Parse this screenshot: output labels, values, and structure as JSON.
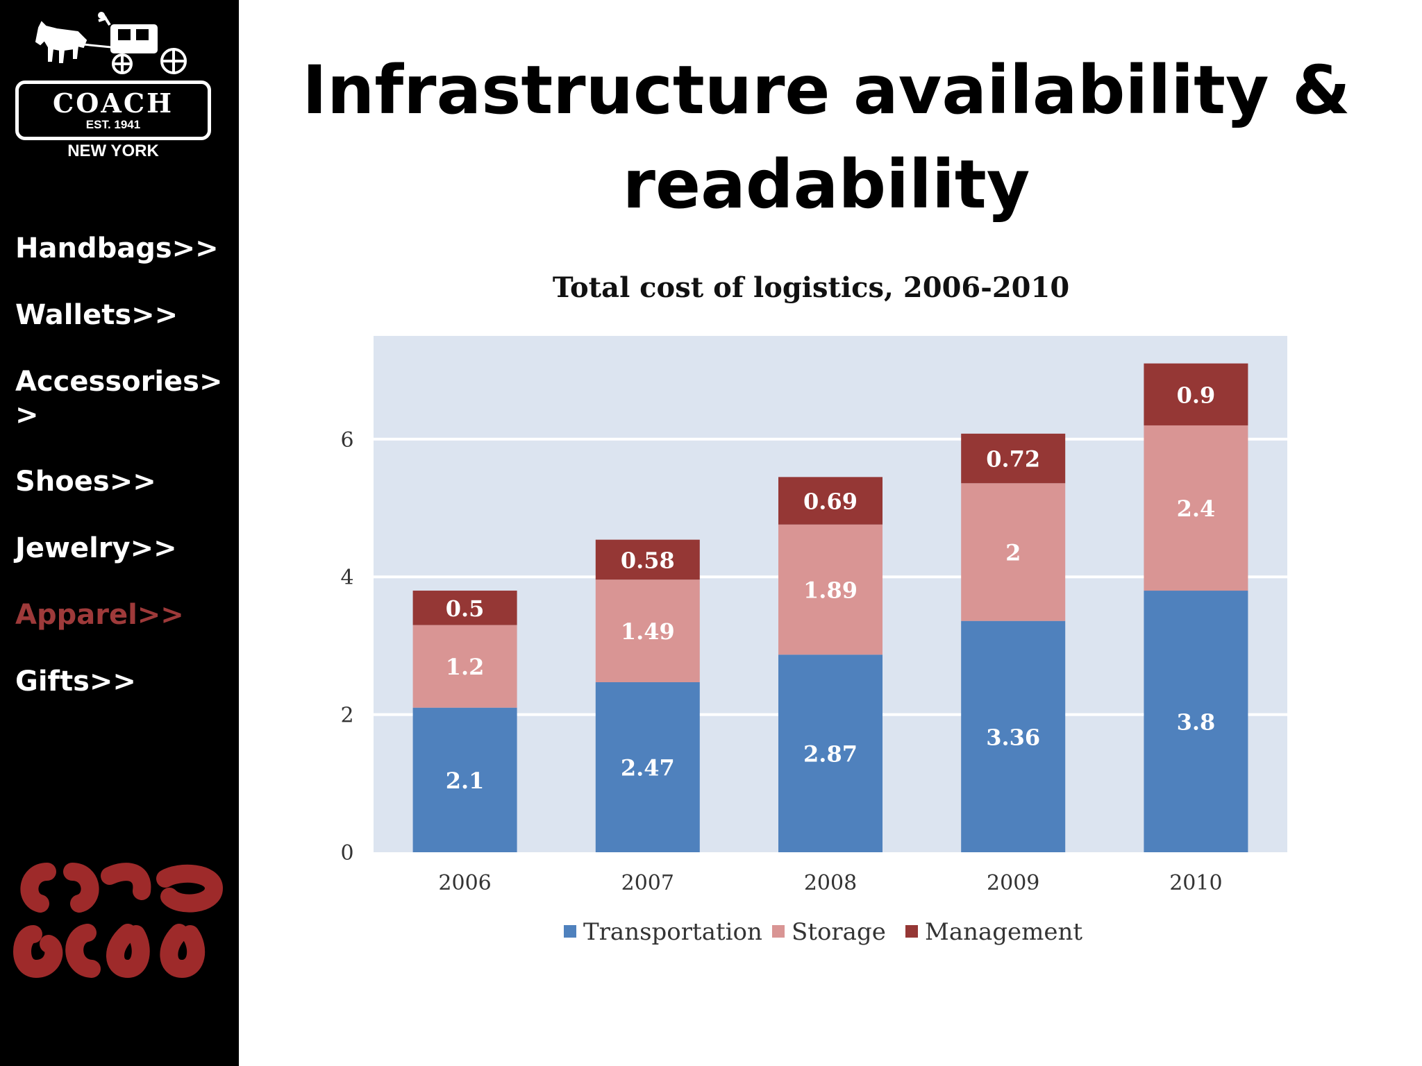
{
  "sidebar": {
    "logo": {
      "brand": "COACH",
      "established": "EST. 1941",
      "city": "NEW YORK",
      "icon": "horse-carriage-icon"
    },
    "nav_items": [
      {
        "label": "Handbags>>",
        "active": false
      },
      {
        "label": "Wallets>>",
        "active": false
      },
      {
        "label": "Accessories>>",
        "active": false
      },
      {
        "label": "Shoes>>",
        "active": false
      },
      {
        "label": "Jewelry>>",
        "active": false
      },
      {
        "label": "Apparel>>",
        "active": true
      },
      {
        "label": "Gifts>>",
        "active": false
      }
    ],
    "active_color": "#9e3a3a",
    "monogram_icon": "coach-c-monogram-icon",
    "monogram_color": "#9e2a2a"
  },
  "slide": {
    "title": "Infrastructure availability & readability"
  },
  "chart_data": {
    "type": "bar",
    "stacked": true,
    "title": "Total cost of logistics, 2006-2010",
    "xlabel": "",
    "ylabel": "",
    "categories": [
      "2006",
      "2007",
      "2008",
      "2009",
      "2010"
    ],
    "ylim": [
      0,
      7.5
    ],
    "yticks": [
      0,
      2,
      4,
      6
    ],
    "grid": true,
    "legend_position": "bottom",
    "series": [
      {
        "name": "Transportation",
        "values": [
          2.1,
          2.47,
          2.87,
          3.36,
          3.8
        ],
        "labels": [
          "2.1",
          "2.47",
          "2.87",
          "3.36",
          "3.8"
        ],
        "color": "#4f81bd"
      },
      {
        "name": "Storage",
        "values": [
          1.2,
          1.49,
          1.89,
          2,
          2.4
        ],
        "labels": [
          "1.2",
          "1.49",
          "1.89",
          "2",
          "2.4"
        ],
        "color": "#d99594"
      },
      {
        "name": "Management",
        "values": [
          0.5,
          0.58,
          0.69,
          0.72,
          0.9
        ],
        "labels": [
          "0.5",
          "0.58",
          "0.69",
          "0.72",
          "0.9"
        ],
        "color": "#953735"
      }
    ],
    "plot_background": "#dce4f0",
    "gridline_color": "#ffffff"
  }
}
